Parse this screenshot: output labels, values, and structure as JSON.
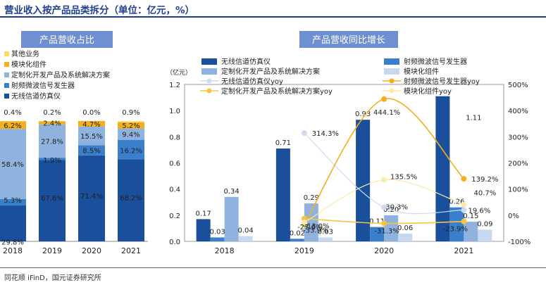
{
  "page": {
    "title": "营业收入按产品品类拆分（单位：亿元，%）",
    "source": "同花顺 iFinD，国元证券研究所"
  },
  "chart_data": [
    {
      "type": "bar",
      "stacked": true,
      "title": "产品营收占比",
      "categories": [
        "2018",
        "2019",
        "2020",
        "2021"
      ],
      "series": [
        {
          "name": "无线信道仿真仪",
          "color": "#1a4f9c",
          "values": [
            29.8,
            67.6,
            71.4,
            68.2
          ],
          "labels": [
            "29.8%",
            "67.6%",
            "71.4%",
            "68.2%"
          ]
        },
        {
          "name": "射频微波信号发生器",
          "color": "#3a7fcb",
          "values": [
            5.3,
            1.9,
            8.5,
            16.2
          ],
          "labels": [
            "5.3%",
            "1.9%",
            "8.5%",
            "16.2%"
          ]
        },
        {
          "name": "定制化开发产品及系统解决方案",
          "color": "#8fb3de",
          "values": [
            58.4,
            27.8,
            15.5,
            9.4
          ],
          "labels": [
            "58.4%",
            "27.8%",
            "15.5%",
            "9.4%"
          ]
        },
        {
          "name": "模块化组件",
          "color": "#f2b01e",
          "values": [
            6.2,
            2.4,
            4.7,
            5.2
          ],
          "labels": [
            "6.2%",
            "2.4%",
            "4.7%",
            "5.2%"
          ]
        },
        {
          "name": "其他业务",
          "color": "#ffd966",
          "values": [
            0.4,
            0.2,
            0.0,
            0.9
          ],
          "labels": [
            "0.4%",
            "0.2%",
            "0.0%",
            "0.9%"
          ]
        }
      ]
    },
    {
      "type": "bar",
      "title": "产品营收同比增长",
      "y_unit": "（亿元）",
      "categories": [
        "2018",
        "2019",
        "2020",
        "2021"
      ],
      "ylim": [
        0,
        1.2
      ],
      "y2lim": [
        -100,
        500
      ],
      "yticks": [
        "0.0",
        "0.2",
        "0.4",
        "0.6",
        "0.8",
        "1.0",
        "1.2"
      ],
      "y2ticks": [
        "-100%",
        "0%",
        "100%",
        "200%",
        "300%",
        "400%",
        "500%"
      ],
      "bar_series": [
        {
          "name": "无线信道仿真仪",
          "color": "#1a4f9c",
          "values": [
            0.17,
            0.71,
            0.93,
            1.11
          ],
          "labels": [
            "0.17",
            "0.71",
            "0.93",
            "1.11"
          ]
        },
        {
          "name": "射频微波信号发生器",
          "color": "#3a7fcb",
          "values": [
            0.03,
            0.02,
            0.11,
            0.26
          ],
          "labels": [
            "0.03",
            "0.02",
            "0.11",
            "0.26"
          ]
        },
        {
          "name": "定制化开发产品及系统解决方案",
          "color": "#8fb3de",
          "values": [
            0.34,
            0.29,
            0.2,
            0.15
          ],
          "labels": [
            "0.34",
            "0.29",
            "0.20",
            "0.15"
          ]
        },
        {
          "name": "模块化组件",
          "color": "#c6d9f0",
          "values": [
            0.04,
            0.03,
            0.06,
            0.09
          ],
          "labels": [
            "0.04",
            "0.03",
            "0.06",
            "0.09"
          ]
        }
      ],
      "line_series": [
        {
          "name": "无线信道仿真仪yoy",
          "color": "#cddcf1",
          "values": [
            null,
            314.3,
            30.3,
            19.6
          ],
          "labels": [
            "",
            "314.3%",
            "30.3%",
            "19.6%"
          ]
        },
        {
          "name": "射频微波信号发生器yoy",
          "color": "#f2b01e",
          "values": [
            null,
            -33.9,
            444.1,
            139.2
          ],
          "labels": [
            "",
            "-33.9%",
            "444.1%",
            "139.2%"
          ]
        },
        {
          "name": "定制化开发产品及系统解决方案yoy",
          "color": "#f5c542",
          "values": [
            null,
            -13.0,
            -31.3,
            -23.9
          ],
          "labels": [
            "",
            "-13.0%",
            "-31.3%",
            "-23.9%"
          ]
        },
        {
          "name": "模块化组件yoy",
          "color": "#fde9a9",
          "values": [
            null,
            -27.6,
            135.5,
            40.7
          ],
          "labels": [
            "",
            "-27.6%",
            "135.5%",
            "40.7%"
          ]
        }
      ]
    }
  ]
}
